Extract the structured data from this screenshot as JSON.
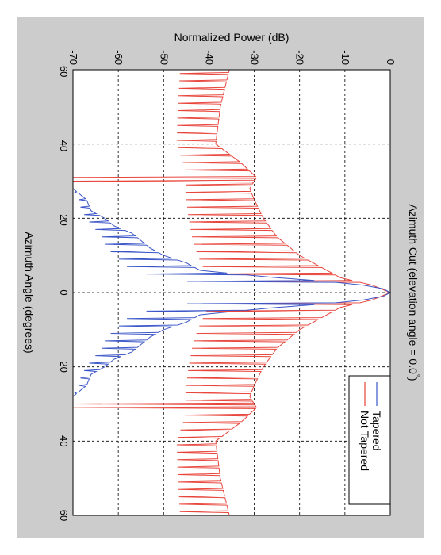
{
  "chart_data": {
    "type": "line",
    "orientation": "rotated-90-clockwise",
    "title": "Azimuth Cut (elevation angle = 0.0",
    "title_degree_mark": "°",
    "title_suffix": ")",
    "xlabel": "Azimuth Angle (degrees)",
    "ylabel": "Normalized Power (dB)",
    "xlim": [
      -60,
      60
    ],
    "ylim": [
      -70,
      0
    ],
    "x_ticks": [
      -60,
      -40,
      -20,
      0,
      20,
      40,
      60
    ],
    "y_ticks": [
      -70,
      -60,
      -50,
      -40,
      -30,
      -20,
      -10,
      0
    ],
    "x_tick_labels": [
      "-60",
      "-40",
      "-20",
      "0",
      "20",
      "40",
      "60"
    ],
    "y_tick_labels": [
      "-70",
      "-60",
      "-50",
      "-40",
      "-30",
      "-20",
      "-10",
      "0"
    ],
    "grid": true,
    "legend_position": "top-right",
    "series": [
      {
        "name": "Not Tapered",
        "color": "#e8443a",
        "style": "sidelobes",
        "floor": -50,
        "envelope": [
          [
            -60,
            -35.5
          ],
          [
            -55,
            -36.5
          ],
          [
            -50,
            -37.5
          ],
          [
            -45,
            -38
          ],
          [
            -40,
            -38.5
          ],
          [
            -35,
            -33
          ],
          [
            -31,
            -29.5
          ],
          [
            -28,
            -31
          ],
          [
            -25,
            -30
          ],
          [
            -20,
            -28
          ],
          [
            -15,
            -25
          ],
          [
            -10,
            -20
          ],
          [
            -6,
            -14
          ],
          [
            -4,
            -11
          ],
          [
            -2,
            -4
          ],
          [
            0,
            0
          ],
          [
            2,
            -4
          ],
          [
            4,
            -11
          ],
          [
            6,
            -14
          ],
          [
            10,
            -20
          ],
          [
            15,
            -25
          ],
          [
            20,
            -28
          ],
          [
            25,
            -30
          ],
          [
            28,
            -31
          ],
          [
            31,
            -29.5
          ],
          [
            35,
            -33
          ],
          [
            40,
            -38.5
          ],
          [
            45,
            -38
          ],
          [
            50,
            -37.5
          ],
          [
            55,
            -36.5
          ],
          [
            60,
            -35.5
          ]
        ],
        "spikes": [
          [
            -31,
            -70
          ],
          [
            -30,
            -70
          ],
          [
            30,
            -70
          ],
          [
            31,
            -70
          ]
        ]
      },
      {
        "name": "Tapered",
        "color": "#3a55c8",
        "style": "sidelobes",
        "floor": -70,
        "envelope": [
          [
            -28,
            -70
          ],
          [
            -25,
            -67
          ],
          [
            -22,
            -66
          ],
          [
            -20,
            -63
          ],
          [
            -18,
            -61
          ],
          [
            -16,
            -57
          ],
          [
            -14,
            -55
          ],
          [
            -12,
            -53
          ],
          [
            -10,
            -50
          ],
          [
            -8,
            -45
          ],
          [
            -6,
            -42
          ],
          [
            -5,
            -34
          ],
          [
            -4,
            -25
          ],
          [
            -3,
            -14
          ],
          [
            -2,
            -6
          ],
          [
            -1,
            -1.5
          ],
          [
            0,
            0
          ],
          [
            1,
            -1.5
          ],
          [
            2,
            -6
          ],
          [
            3,
            -14
          ],
          [
            4,
            -25
          ],
          [
            5,
            -34
          ],
          [
            6,
            -42
          ],
          [
            8,
            -45
          ],
          [
            10,
            -50
          ],
          [
            12,
            -53
          ],
          [
            14,
            -55
          ],
          [
            16,
            -57
          ],
          [
            18,
            -61
          ],
          [
            20,
            -63
          ],
          [
            22,
            -66
          ],
          [
            25,
            -67
          ],
          [
            28,
            -70
          ]
        ],
        "spikes": []
      }
    ]
  }
}
